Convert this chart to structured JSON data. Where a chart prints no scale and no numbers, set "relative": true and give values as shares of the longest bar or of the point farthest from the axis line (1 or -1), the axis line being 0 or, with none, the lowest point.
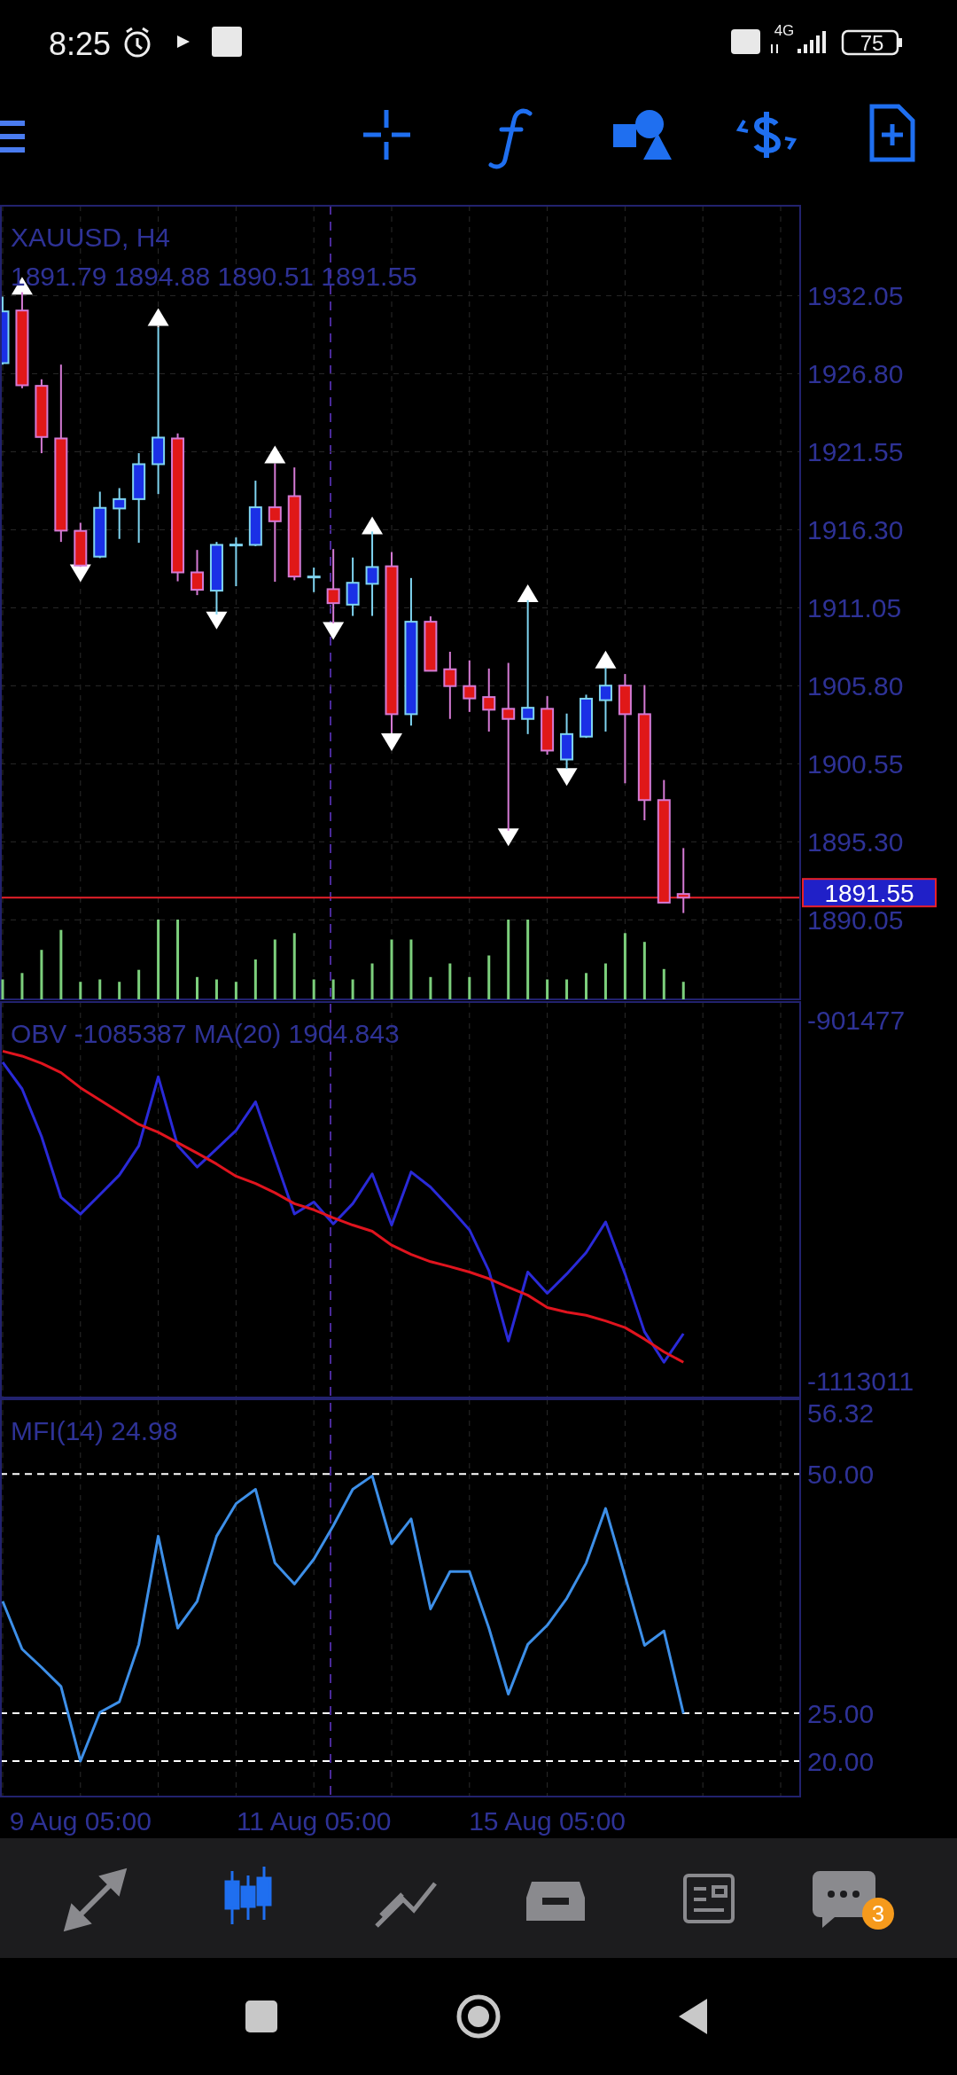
{
  "chart_data": [
    {
      "type": "candlestick",
      "title": "XAUUSD, H4",
      "subtitle": "1891.79 1894.88 1890.51 1891.55",
      "categories": [
        null,
        null,
        null,
        null,
        null,
        null,
        null,
        null,
        null,
        null,
        null,
        null,
        null,
        null,
        null,
        null,
        null,
        null,
        null,
        null,
        null,
        null,
        null,
        null,
        null,
        null,
        null,
        null,
        null,
        null,
        null,
        null,
        null,
        null,
        null,
        null
      ],
      "ohlc": [
        [
          1927.51,
          1931.98,
          1927.4,
          1930.99
        ],
        [
          1931.05,
          1932.28,
          1925.82,
          1926.02
        ],
        [
          1925.98,
          1926.42,
          1921.45,
          1922.54
        ],
        [
          1922.44,
          1927.41,
          1915.48,
          1916.24
        ],
        [
          1916.22,
          1916.77,
          1913.8,
          1913.89
        ],
        [
          1914.49,
          1918.86,
          1914.39,
          1917.77
        ],
        [
          1917.73,
          1919.1,
          1915.68,
          1918.36
        ],
        [
          1918.36,
          1921.45,
          1915.42,
          1920.71
        ],
        [
          1920.71,
          1929.9,
          1918.7,
          1922.5
        ],
        [
          1922.44,
          1922.78,
          1912.83,
          1913.43
        ],
        [
          1913.43,
          1914.94,
          1911.9,
          1912.26
        ],
        [
          1912.2,
          1915.48,
          1910.6,
          1915.28
        ],
        [
          1915.3,
          1915.78,
          1912.5,
          1915.3
        ],
        [
          1915.28,
          1919.6,
          1915.2,
          1917.81
        ],
        [
          1917.81,
          1920.75,
          1912.8,
          1916.87
        ],
        [
          1918.56,
          1920.49,
          1912.9,
          1913.15
        ],
        [
          1913.15,
          1913.75,
          1912.1,
          1913.15
        ],
        [
          1912.3,
          1915.0,
          1910.0,
          1911.36
        ],
        [
          1911.26,
          1914.43,
          1910.5,
          1912.73
        ],
        [
          1912.66,
          1916.18,
          1910.5,
          1913.79
        ],
        [
          1913.84,
          1914.8,
          1902.65,
          1903.89
        ],
        [
          1903.89,
          1913.05,
          1903.12,
          1910.11
        ],
        [
          1910.11,
          1910.47,
          1906.8,
          1906.81
        ],
        [
          1906.91,
          1908.09,
          1903.57,
          1905.78
        ],
        [
          1905.78,
          1907.51,
          1904.04,
          1904.95
        ],
        [
          1905.04,
          1906.96,
          1902.72,
          1904.19
        ],
        [
          1904.25,
          1907.34,
          1896.05,
          1903.57
        ],
        [
          1903.57,
          1911.56,
          1902.55,
          1904.32
        ],
        [
          1904.25,
          1905.1,
          1901.16,
          1901.44
        ],
        [
          1900.84,
          1903.93,
          1900.2,
          1902.55
        ],
        [
          1902.38,
          1905.2,
          1902.29,
          1904.93
        ],
        [
          1904.83,
          1907.02,
          1902.72,
          1905.81
        ],
        [
          1905.81,
          1906.59,
          1899.24,
          1903.89
        ],
        [
          1903.89,
          1905.85,
          1896.75,
          1898.11
        ],
        [
          1898.11,
          1899.46,
          1891.2,
          1891.21
        ],
        [
          1891.79,
          1894.88,
          1890.51,
          1891.55
        ]
      ],
      "series": [
        {
          "type": "scatter",
          "color": "#ffffff",
          "values": [
            null,
            1932.6,
            null,
            null,
            null,
            null,
            null,
            null,
            1930.5,
            null,
            null,
            null,
            null,
            null,
            1921.25,
            null,
            null,
            null,
            null,
            1916.47,
            null,
            null,
            null,
            null,
            null,
            null,
            null,
            1911.9,
            null,
            null,
            null,
            1907.45,
            null,
            null,
            null,
            null
          ]
        },
        {
          "type": "scatter",
          "color": "#ffffff",
          "values": [
            null,
            null,
            null,
            null,
            1913.49,
            null,
            null,
            null,
            null,
            null,
            null,
            1910.31,
            null,
            null,
            null,
            null,
            null,
            1909.61,
            null,
            null,
            1902.12,
            null,
            null,
            null,
            null,
            null,
            1895.73,
            null,
            null,
            1899.78,
            null,
            null,
            null,
            null,
            null,
            null
          ]
        }
      ],
      "marker": "triangle",
      "ylim": [
        1884.7,
        1938.1
      ],
      "yticks": [
        1932.05,
        {
          "value": 1926.8,
          "label": "1926.80"
        },
        1921.55,
        {
          "value": 1916.3,
          "label": "1916.30"
        },
        1911.05,
        {
          "value": 1905.8,
          "label": "1905.80"
        },
        1900.55,
        {
          "value": 1895.3,
          "label": "1895.30"
        },
        1890.05
      ],
      "grid": true,
      "tick_labels": "y",
      "ref_lines": [
        {
          "axis": "y",
          "value": 1891.55,
          "label": "1891.55",
          "color": "#e8202a"
        }
      ],
      "annotations": [
        "8:25",
        "4G",
        "75",
        "3"
      ]
    },
    {
      "type": "bar",
      "relative": true,
      "color": "#7ccf7c",
      "tick_labels": false,
      "categories": [
        null,
        null,
        null,
        null,
        null,
        null,
        null,
        null,
        null,
        null,
        null,
        null,
        null,
        null,
        null,
        null,
        null,
        null,
        null,
        null,
        null,
        null,
        null,
        null,
        null,
        null,
        null,
        null,
        null,
        null,
        null,
        null,
        null,
        null,
        null,
        null
      ],
      "values": [
        0.25,
        0.33,
        0.62,
        0.87,
        0.22,
        0.25,
        0.22,
        0.37,
        1,
        1,
        0.28,
        0.25,
        0.22,
        0.5,
        0.75,
        0.83,
        0.25,
        0.25,
        0.25,
        0.45,
        0.75,
        0.75,
        0.28,
        0.45,
        0.28,
        0.55,
        1,
        1,
        0.25,
        0.25,
        0.33,
        0.45,
        0.83,
        0.72,
        0.38,
        0.22
      ]
    },
    {
      "type": "line",
      "title": "OBV -1085387 MA(20) 1904.843",
      "categories": [
        null,
        null,
        null,
        null,
        null,
        null,
        null,
        null,
        null,
        null,
        null,
        null,
        null,
        null,
        null,
        null,
        null,
        null,
        null,
        null,
        null,
        null,
        null,
        null,
        null,
        null,
        null,
        null,
        null,
        null,
        null,
        null,
        null,
        null,
        null,
        null
      ],
      "series": [
        {
          "color": "#2a2ad8",
          "values": [
            -925900,
            -941600,
            -969600,
            -1005400,
            -1015100,
            -1003700,
            -992200,
            -975000,
            -934500,
            -975000,
            -987500,
            -976800,
            -966000,
            -949200,
            -982100,
            -1015100,
            -1008000,
            -1020900,
            -1009000,
            -991500,
            -1021600,
            -990400,
            -999300,
            -1011500,
            -1024400,
            -1048500,
            -1089700,
            -1049200,
            -1061700,
            -1050300,
            -1037700,
            -1019800,
            -1050300,
            -1084300,
            -1102200,
            -1085387
          ]
        },
        {
          "color": "#e0141e",
          "values": [
            -919400,
            -922300,
            -926600,
            -932000,
            -940900,
            -948100,
            -955300,
            -962400,
            -967100,
            -973200,
            -979300,
            -985700,
            -992900,
            -997200,
            -1002600,
            -1009000,
            -1012600,
            -1017300,
            -1021600,
            -1025200,
            -1033400,
            -1038800,
            -1043100,
            -1046000,
            -1049200,
            -1053100,
            -1058100,
            -1062800,
            -1070000,
            -1072800,
            -1074600,
            -1077900,
            -1081800,
            -1088600,
            -1096100,
            -1102200
          ]
        }
      ],
      "ylim": [
        -1122910,
        -890540
      ],
      "yticks": [
        -1113011,
        -901477
      ],
      "grid": "x",
      "tick_labels": "y"
    },
    {
      "type": "line",
      "title": "MFI(14) 24.98",
      "categories": [
        null,
        null,
        null,
        null,
        "9 Aug 05:00",
        null,
        null,
        null,
        null,
        null,
        null,
        null,
        null,
        null,
        null,
        null,
        "11 Aug 05:00",
        null,
        null,
        null,
        null,
        null,
        null,
        null,
        null,
        null,
        null,
        null,
        "15 Aug 05:00",
        null,
        null,
        null,
        null,
        null,
        null,
        null
      ],
      "series": [
        {
          "color": "#3d8fe8",
          "values": [
            36.7,
            31.7,
            29.8,
            27.8,
            20.0,
            25.1,
            26.2,
            32.2,
            43.5,
            33.9,
            36.7,
            43.5,
            46.9,
            48.4,
            40.7,
            38.5,
            41.1,
            44.6,
            48.4,
            49.8,
            42.7,
            45.3,
            35.9,
            39.8,
            39.8,
            33.9,
            27.0,
            32.2,
            34.2,
            37.0,
            40.7,
            46.4,
            39.3,
            32.1,
            33.6,
            24.98
          ]
        }
      ],
      "ylim": [
        16.3,
        57.8
      ],
      "yticks": [
        56.32,
        {
          "value": 50,
          "label": "50.00"
        },
        {
          "value": 25,
          "label": "25.00"
        },
        {
          "value": 20,
          "label": "20.00"
        }
      ],
      "grid": "x",
      "ref_lines": [
        {
          "axis": "y",
          "value": 50,
          "color": "#ffffff",
          "line_style": "dashed"
        },
        {
          "axis": "y",
          "value": 25,
          "color": "#ffffff",
          "line_style": "dashed"
        },
        {
          "axis": "y",
          "value": 20,
          "color": "#ffffff",
          "line_style": "dashed"
        }
      ]
    }
  ]
}
